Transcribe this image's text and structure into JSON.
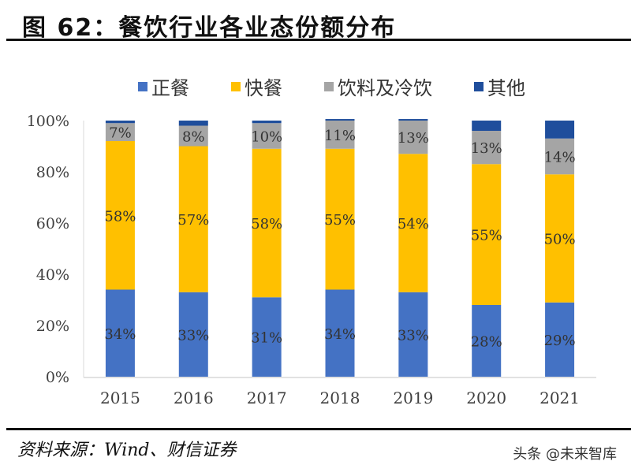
{
  "title": "图 62：餐饮行业各业态份额分布",
  "source": "资料来源：Wind、财信证券",
  "watermark": "头条 @未来智库",
  "chart_data": {
    "type": "bar",
    "stacked": true,
    "title": "餐饮行业各业态份额分布",
    "xlabel": "",
    "ylabel": "",
    "ylim": [
      0,
      100
    ],
    "yticks": [
      0,
      20,
      40,
      60,
      80,
      100
    ],
    "ytick_labels": [
      "0%",
      "20%",
      "40%",
      "60%",
      "80%",
      "100%"
    ],
    "grid": false,
    "legend_position": "top",
    "categories": [
      "2015",
      "2016",
      "2017",
      "2018",
      "2019",
      "2020",
      "2021"
    ],
    "series": [
      {
        "name": "正餐",
        "color": "#4472C4",
        "values": [
          34,
          33,
          31,
          34,
          33,
          28,
          29
        ],
        "labels": [
          "34%",
          "33%",
          "31%",
          "34%",
          "33%",
          "28%",
          "29%"
        ]
      },
      {
        "name": "快餐",
        "color": "#FFC000",
        "values": [
          58,
          57,
          58,
          55,
          54,
          55,
          50
        ],
        "labels": [
          "58%",
          "57%",
          "58%",
          "55%",
          "54%",
          "55%",
          "50%"
        ]
      },
      {
        "name": "饮料及冷饮",
        "color": "#A5A5A5",
        "values": [
          7,
          8,
          10,
          11,
          13,
          13,
          14
        ],
        "labels": [
          "7%",
          "8%",
          "10%",
          "11%",
          "13%",
          "13%",
          "14%"
        ]
      },
      {
        "name": "其他",
        "color": "#1F4E9C",
        "values": [
          1,
          2,
          1,
          0,
          0,
          4,
          7
        ],
        "labels": []
      }
    ]
  }
}
